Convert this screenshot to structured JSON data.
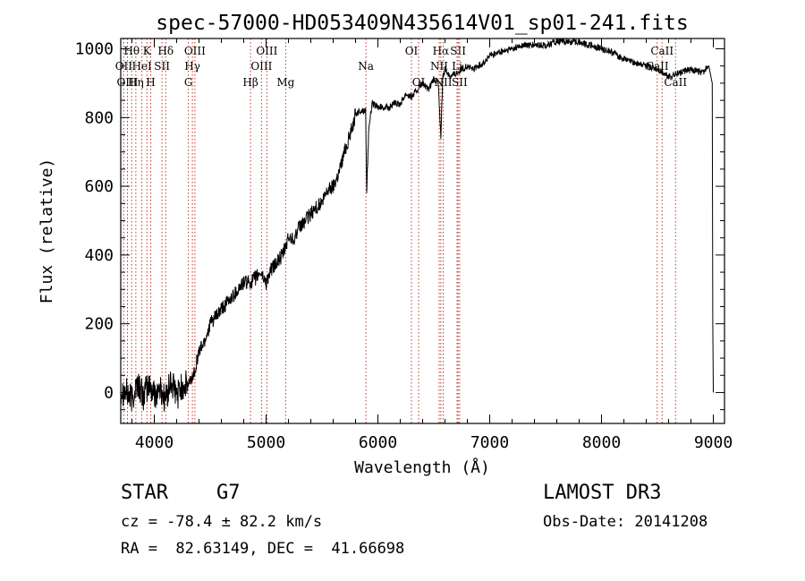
{
  "chart_data": {
    "type": "line",
    "title": "spec-57000-HD053409N435614V01_sp01-241.fits",
    "xlabel": "Wavelength (Å)",
    "ylabel": "Flux (relative)",
    "xlim": [
      3700,
      9100
    ],
    "ylim": [
      -90,
      1030
    ],
    "xticks": [
      4000,
      5000,
      6000,
      7000,
      8000,
      9000
    ],
    "yticks": [
      0,
      200,
      400,
      600,
      800,
      1000
    ],
    "series": [
      {
        "name": "flux",
        "x": [
          3700,
          3750,
          3800,
          3850,
          3900,
          3950,
          4000,
          4050,
          4100,
          4150,
          4200,
          4250,
          4300,
          4350,
          4400,
          4450,
          4500,
          4550,
          4600,
          4650,
          4700,
          4750,
          4800,
          4850,
          4900,
          4950,
          5000,
          5050,
          5100,
          5150,
          5200,
          5250,
          5300,
          5350,
          5400,
          5450,
          5500,
          5550,
          5600,
          5650,
          5700,
          5750,
          5800,
          5850,
          5890,
          5900,
          5920,
          5950,
          6000,
          6050,
          6100,
          6150,
          6200,
          6250,
          6300,
          6350,
          6400,
          6450,
          6500,
          6540,
          6563,
          6580,
          6600,
          6650,
          6700,
          6750,
          6800,
          6850,
          6900,
          6950,
          7000,
          7100,
          7200,
          7300,
          7400,
          7500,
          7600,
          7700,
          7800,
          7900,
          8000,
          8100,
          8200,
          8300,
          8400,
          8500,
          8600,
          8700,
          8800,
          8900,
          8960,
          8990,
          8995,
          9000
        ],
        "y": [
          10,
          0,
          -20,
          30,
          -10,
          20,
          -5,
          10,
          -20,
          30,
          -10,
          20,
          20,
          50,
          120,
          150,
          200,
          220,
          240,
          260,
          280,
          300,
          320,
          320,
          330,
          350,
          320,
          360,
          380,
          400,
          450,
          450,
          480,
          500,
          520,
          540,
          550,
          590,
          600,
          640,
          700,
          750,
          810,
          820,
          820,
          590,
          780,
          840,
          830,
          830,
          830,
          840,
          840,
          870,
          860,
          880,
          900,
          880,
          910,
          900,
          740,
          920,
          940,
          920,
          930,
          940,
          950,
          940,
          950,
          960,
          980,
          990,
          1000,
          1010,
          1010,
          1010,
          1020,
          1020,
          1020,
          1010,
          1000,
          990,
          970,
          960,
          950,
          940,
          920,
          930,
          940,
          930,
          950,
          900,
          200,
          0
        ]
      }
    ],
    "lines": [
      {
        "label": "Hθ",
        "wave": 3798,
        "row": 1
      },
      {
        "label": "OII",
        "wave": 3727,
        "row": 2
      },
      {
        "label": "OIII",
        "wave": 3760,
        "row": 3
      },
      {
        "label": "HeI",
        "wave": 3889,
        "row": 2
      },
      {
        "label": "Hη",
        "wave": 3835,
        "row": 3
      },
      {
        "label": "K",
        "wave": 3934,
        "row": 1
      },
      {
        "label": "H",
        "wave": 3968,
        "row": 3
      },
      {
        "label": "SII",
        "wave": 4069,
        "row": 2
      },
      {
        "label": "Hδ",
        "wave": 4102,
        "row": 1
      },
      {
        "label": "OIII",
        "wave": 4363,
        "row": 1
      },
      {
        "label": "Hγ",
        "wave": 4341,
        "row": 2
      },
      {
        "label": "G",
        "wave": 4305,
        "row": 3
      },
      {
        "label": "OIII",
        "wave": 5007,
        "row": 1
      },
      {
        "label": "OIII",
        "wave": 4959,
        "row": 2
      },
      {
        "label": "Hβ",
        "wave": 4861,
        "row": 3
      },
      {
        "label": "Mg",
        "wave": 5175,
        "row": 3
      },
      {
        "label": "Na",
        "wave": 5893,
        "row": 2
      },
      {
        "label": "OI",
        "wave": 6300,
        "row": 1
      },
      {
        "label": "OI",
        "wave": 6364,
        "row": 3
      },
      {
        "label": "Hα",
        "wave": 6563,
        "row": 1
      },
      {
        "label": "NII",
        "wave": 6548,
        "row": 2
      },
      {
        "label": "NII",
        "wave": 6584,
        "row": 3
      },
      {
        "label": "SII",
        "wave": 6717,
        "row": 1
      },
      {
        "label": "Li",
        "wave": 6708,
        "row": 2
      },
      {
        "label": "SII",
        "wave": 6731,
        "row": 3
      },
      {
        "label": "CaII",
        "wave": 8542,
        "row": 1
      },
      {
        "label": "CaII",
        "wave": 8498,
        "row": 2
      },
      {
        "label": "CaII",
        "wave": 8662,
        "row": 3
      }
    ]
  },
  "info": {
    "object_type": "STAR",
    "subclass": "G7",
    "survey": "LAMOST DR3",
    "cz": "cz = -78.4 ± 82.2 km/s",
    "obs_date": "Obs-Date: 20141208",
    "coords": "RA =  82.63149, DEC =  41.66698"
  }
}
